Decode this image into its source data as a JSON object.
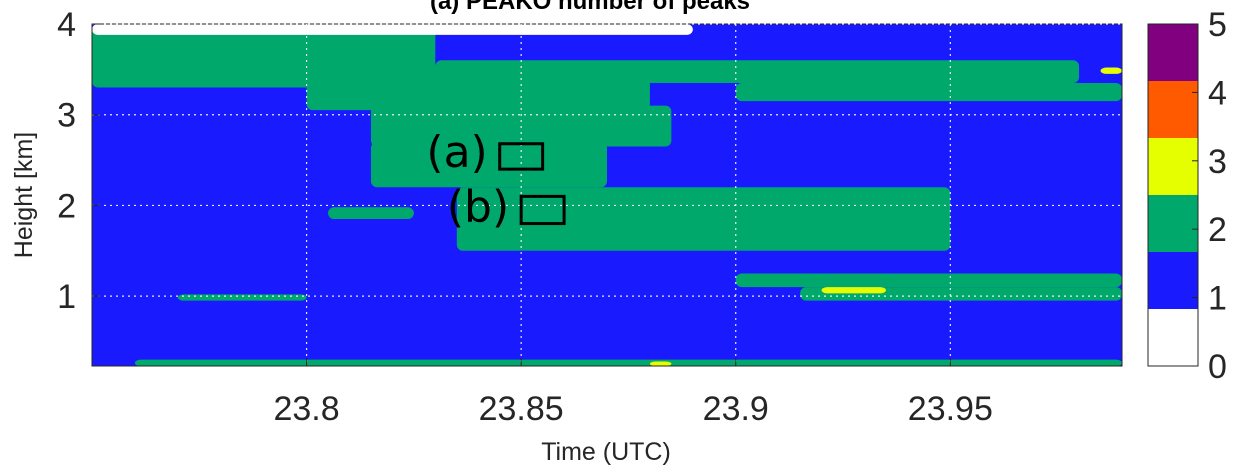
{
  "chart_data": {
    "type": "heatmap",
    "title": "(a) PEAKO number of peaks",
    "xlabel": "Time (UTC)",
    "ylabel": "Height [km]",
    "xlim": [
      23.75,
      23.99
    ],
    "ylim": [
      0.23,
      4.0
    ],
    "xticks": [
      23.8,
      23.85,
      23.9,
      23.95
    ],
    "xtick_labels": [
      "23.8",
      "23.85",
      "23.9",
      "23.95"
    ],
    "yticks": [
      1,
      2,
      3,
      4
    ],
    "ytick_labels": [
      "1",
      "2",
      "3",
      "4"
    ],
    "grid": true,
    "colorbar": {
      "range": [
        0,
        5
      ],
      "ticks": [
        "0",
        "1",
        "2",
        "3",
        "4",
        "5"
      ],
      "levels": [
        {
          "value": 0,
          "color": "#ffffff"
        },
        {
          "value": 1,
          "color": "#1a1aff"
        },
        {
          "value": 2,
          "color": "#00a86b"
        },
        {
          "value": 3,
          "color": "#e5ff00"
        },
        {
          "value": 4,
          "color": "#ff5a00"
        },
        {
          "value": 5,
          "color": "#800080"
        }
      ]
    },
    "background_value": 1,
    "regions_value_2": [
      {
        "t0": 23.75,
        "t1": 23.83,
        "h0": 3.3,
        "h1": 3.95
      },
      {
        "t0": 23.8,
        "t1": 23.88,
        "h0": 3.05,
        "h1": 3.55
      },
      {
        "t0": 23.83,
        "t1": 23.98,
        "h0": 3.35,
        "h1": 3.6
      },
      {
        "t0": 23.9,
        "t1": 23.99,
        "h0": 3.15,
        "h1": 3.35
      },
      {
        "t0": 23.815,
        "t1": 23.885,
        "h0": 2.65,
        "h1": 3.1
      },
      {
        "t0": 23.815,
        "t1": 23.87,
        "h0": 2.2,
        "h1": 2.7
      },
      {
        "t0": 23.835,
        "t1": 23.95,
        "h0": 1.5,
        "h1": 2.2
      },
      {
        "t0": 23.805,
        "t1": 23.825,
        "h0": 1.85,
        "h1": 1.98
      },
      {
        "t0": 23.77,
        "t1": 23.8,
        "h0": 0.95,
        "h1": 1.02
      },
      {
        "t0": 23.9,
        "t1": 23.99,
        "h0": 1.1,
        "h1": 1.25
      },
      {
        "t0": 23.915,
        "t1": 23.99,
        "h0": 0.95,
        "h1": 1.1
      },
      {
        "t0": 23.76,
        "t1": 23.99,
        "h0": 0.23,
        "h1": 0.3
      }
    ],
    "regions_value_3": [
      {
        "t0": 23.92,
        "t1": 23.935,
        "h0": 1.03,
        "h1": 1.1
      },
      {
        "t0": 23.985,
        "t1": 23.99,
        "h0": 3.45,
        "h1": 3.52
      },
      {
        "t0": 23.88,
        "t1": 23.885,
        "h0": 0.23,
        "h1": 0.28
      }
    ],
    "regions_value_0": [
      {
        "t0": 23.75,
        "t1": 23.89,
        "h0": 3.88,
        "h1": 4.0
      }
    ],
    "annotations": [
      {
        "label": "(a)",
        "box": {
          "t0": 23.845,
          "t1": 23.855,
          "h0": 2.4,
          "h1": 2.68
        }
      },
      {
        "label": "(b)",
        "box": {
          "t0": 23.85,
          "t1": 23.86,
          "h0": 1.8,
          "h1": 2.1
        }
      }
    ]
  }
}
